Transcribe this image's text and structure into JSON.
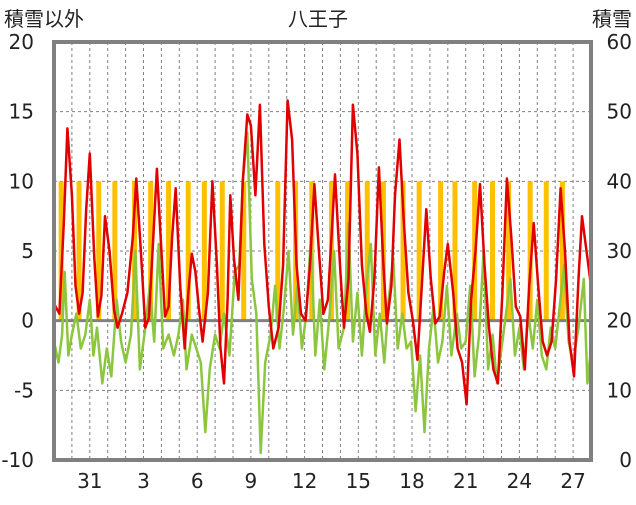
{
  "colors": {
    "temp_line": "#e00000",
    "wind_line": "#8cc63f",
    "sun_bars": "#ffc000",
    "snow_bar": "#7030a0",
    "frame": "#808080",
    "grid": "#808080",
    "zero_line": "#808080"
  },
  "chart_data": {
    "type": "line",
    "title": "八王子",
    "left_axis_label": "積雪以外",
    "right_axis_label": "積雪",
    "ylim": [
      -10,
      20
    ],
    "y_ticks": [
      "20",
      "15",
      "10",
      "5",
      "0",
      "-5",
      "-10"
    ],
    "y2lim": [
      0,
      60
    ],
    "y2_ticks": [
      "60",
      "50",
      "40",
      "30",
      "20",
      "10",
      "0"
    ],
    "x_tick_labels": [
      "31",
      "3",
      "6",
      "9",
      "12",
      "15",
      "18",
      "21",
      "24",
      "27"
    ],
    "x_tick_days": [
      2,
      5,
      8,
      11,
      14,
      17,
      20,
      23,
      26,
      29
    ],
    "x_range_days": [
      0.0,
      30.0
    ],
    "grid": "vertical dashed daily, horizontal dashed at 5-unit steps",
    "sun_bar_days": [
      0.4,
      1.4,
      2.5,
      3.4,
      4.5,
      5.4,
      6.4,
      7.5,
      8.4,
      9.4,
      10.6,
      12.5,
      13.5,
      14.4,
      15.5,
      16.4,
      17.5,
      18.4,
      19.5,
      20.4,
      21.6,
      22.4,
      23.5,
      24.5,
      25.4,
      26.6,
      27.5,
      28.4
    ],
    "sun_bar_value": 10,
    "snow_depth": 0,
    "series": [
      {
        "key": "temperature",
        "values": [
          [
            0.0,
            1.2
          ],
          [
            0.3,
            0.5
          ],
          [
            0.55,
            7.0
          ],
          [
            0.75,
            13.8
          ],
          [
            1.0,
            9.0
          ],
          [
            1.2,
            2.5
          ],
          [
            1.4,
            0.5
          ],
          [
            1.6,
            2.0
          ],
          [
            1.8,
            8.0
          ],
          [
            2.0,
            12.0
          ],
          [
            2.25,
            4.5
          ],
          [
            2.45,
            0.3
          ],
          [
            2.65,
            1.8
          ],
          [
            2.85,
            7.5
          ],
          [
            3.1,
            5.0
          ],
          [
            3.35,
            0.8
          ],
          [
            3.55,
            -0.5
          ],
          [
            3.8,
            0.5
          ],
          [
            4.1,
            2.0
          ],
          [
            4.4,
            6.0
          ],
          [
            4.6,
            10.2
          ],
          [
            4.9,
            4.0
          ],
          [
            5.1,
            -0.5
          ],
          [
            5.3,
            0.2
          ],
          [
            5.55,
            6.0
          ],
          [
            5.75,
            10.9
          ],
          [
            6.0,
            5.0
          ],
          [
            6.2,
            0.3
          ],
          [
            6.4,
            1.0
          ],
          [
            6.6,
            6.0
          ],
          [
            6.8,
            9.5
          ],
          [
            7.05,
            2.5
          ],
          [
            7.3,
            -2.0
          ],
          [
            7.5,
            2.0
          ],
          [
            7.7,
            4.8
          ],
          [
            7.9,
            3.5
          ],
          [
            8.1,
            0.8
          ],
          [
            8.3,
            -1.5
          ],
          [
            8.6,
            2.0
          ],
          [
            8.85,
            10.0
          ],
          [
            9.1,
            4.0
          ],
          [
            9.3,
            -2.0
          ],
          [
            9.5,
            -4.5
          ],
          [
            9.7,
            1.5
          ],
          [
            9.85,
            9.0
          ],
          [
            10.05,
            4.5
          ],
          [
            10.3,
            1.5
          ],
          [
            10.55,
            10.0
          ],
          [
            10.8,
            14.8
          ],
          [
            11.0,
            14.0
          ],
          [
            11.25,
            9.0
          ],
          [
            11.5,
            15.5
          ],
          [
            11.75,
            5.5
          ],
          [
            12.0,
            1.0
          ],
          [
            12.25,
            -2.0
          ],
          [
            12.55,
            -0.5
          ],
          [
            12.8,
            4.0
          ],
          [
            13.05,
            15.8
          ],
          [
            13.3,
            13.0
          ],
          [
            13.55,
            4.0
          ],
          [
            13.8,
            0.5
          ],
          [
            14.05,
            0.0
          ],
          [
            14.3,
            4.0
          ],
          [
            14.55,
            9.8
          ],
          [
            14.8,
            5.0
          ],
          [
            15.05,
            0.5
          ],
          [
            15.3,
            1.5
          ],
          [
            15.5,
            6.0
          ],
          [
            15.7,
            10.5
          ],
          [
            16.0,
            3.5
          ],
          [
            16.2,
            -0.5
          ],
          [
            16.45,
            3.0
          ],
          [
            16.7,
            15.5
          ],
          [
            16.95,
            12.0
          ],
          [
            17.2,
            4.0
          ],
          [
            17.45,
            0.5
          ],
          [
            17.65,
            -0.8
          ],
          [
            17.9,
            3.0
          ],
          [
            18.15,
            11.0
          ],
          [
            18.4,
            4.0
          ],
          [
            18.6,
            -0.2
          ],
          [
            18.85,
            2.5
          ],
          [
            19.05,
            9.0
          ],
          [
            19.3,
            13.0
          ],
          [
            19.55,
            7.0
          ],
          [
            19.8,
            2.0
          ],
          [
            20.05,
            0.0
          ],
          [
            20.3,
            -2.8
          ],
          [
            20.55,
            2.5
          ],
          [
            20.8,
            8.0
          ],
          [
            21.05,
            3.0
          ],
          [
            21.3,
            -0.2
          ],
          [
            21.55,
            0.3
          ],
          [
            21.8,
            3.5
          ],
          [
            22.0,
            5.5
          ],
          [
            22.3,
            2.0
          ],
          [
            22.55,
            -2.0
          ],
          [
            22.8,
            -3.0
          ],
          [
            23.05,
            -6.0
          ],
          [
            23.3,
            1.5
          ],
          [
            23.55,
            5.0
          ],
          [
            23.8,
            9.8
          ],
          [
            24.05,
            4.0
          ],
          [
            24.3,
            -0.5
          ],
          [
            24.55,
            -3.5
          ],
          [
            24.8,
            -4.5
          ],
          [
            25.05,
            2.0
          ],
          [
            25.3,
            10.2
          ],
          [
            25.55,
            6.0
          ],
          [
            25.8,
            1.0
          ],
          [
            26.05,
            0.3
          ],
          [
            26.3,
            -3.5
          ],
          [
            26.55,
            2.5
          ],
          [
            26.8,
            7.0
          ],
          [
            27.05,
            2.5
          ],
          [
            27.3,
            -1.5
          ],
          [
            27.55,
            -2.5
          ],
          [
            27.8,
            -1.5
          ],
          [
            28.05,
            3.0
          ],
          [
            28.3,
            9.5
          ],
          [
            28.55,
            5.0
          ],
          [
            28.8,
            -1.5
          ],
          [
            29.05,
            -4.0
          ],
          [
            29.3,
            3.0
          ],
          [
            29.5,
            7.5
          ],
          [
            29.75,
            5.0
          ],
          [
            30.0,
            2.5
          ]
        ]
      },
      {
        "key": "wind",
        "values": [
          [
            0.0,
            -1.5
          ],
          [
            0.25,
            -3.0
          ],
          [
            0.45,
            -1.0
          ],
          [
            0.6,
            3.5
          ],
          [
            0.8,
            -2.5
          ],
          [
            1.0,
            -1.0
          ],
          [
            1.25,
            0.5
          ],
          [
            1.5,
            -2.0
          ],
          [
            1.75,
            -1.0
          ],
          [
            2.0,
            1.5
          ],
          [
            2.2,
            -2.5
          ],
          [
            2.4,
            -0.5
          ],
          [
            2.7,
            -4.5
          ],
          [
            2.95,
            -2.0
          ],
          [
            3.2,
            -4.0
          ],
          [
            3.5,
            1.5
          ],
          [
            3.75,
            -1.5
          ],
          [
            4.0,
            -3.0
          ],
          [
            4.3,
            -1.0
          ],
          [
            4.55,
            5.0
          ],
          [
            4.8,
            -3.5
          ],
          [
            5.1,
            -0.5
          ],
          [
            5.35,
            2.5
          ],
          [
            5.6,
            -1.5
          ],
          [
            5.85,
            5.5
          ],
          [
            6.1,
            -2.0
          ],
          [
            6.4,
            -1.0
          ],
          [
            6.7,
            -2.5
          ],
          [
            6.95,
            -1.0
          ],
          [
            7.2,
            1.5
          ],
          [
            7.4,
            -3.5
          ],
          [
            7.7,
            -1.0
          ],
          [
            7.95,
            -2.0
          ],
          [
            8.2,
            -3.0
          ],
          [
            8.45,
            -8.0
          ],
          [
            8.7,
            -3.5
          ],
          [
            9.0,
            -1.0
          ],
          [
            9.25,
            -2.0
          ],
          [
            9.5,
            0.5
          ],
          [
            9.8,
            -2.5
          ],
          [
            10.1,
            3.5
          ],
          [
            10.35,
            4.0
          ],
          [
            10.55,
            10.0
          ],
          [
            10.8,
            13.5
          ],
          [
            11.05,
            3.0
          ],
          [
            11.3,
            0.5
          ],
          [
            11.55,
            -9.5
          ],
          [
            11.8,
            -3.0
          ],
          [
            12.1,
            -1.0
          ],
          [
            12.35,
            2.5
          ],
          [
            12.6,
            -2.0
          ],
          [
            12.85,
            1.0
          ],
          [
            13.1,
            5.0
          ],
          [
            13.35,
            -1.0
          ],
          [
            13.6,
            2.5
          ],
          [
            13.85,
            -2.0
          ],
          [
            14.1,
            0.5
          ],
          [
            14.35,
            6.0
          ],
          [
            14.6,
            -2.5
          ],
          [
            14.85,
            1.5
          ],
          [
            15.1,
            -3.5
          ],
          [
            15.4,
            0.5
          ],
          [
            15.65,
            5.0
          ],
          [
            15.9,
            -2.0
          ],
          [
            16.2,
            -0.5
          ],
          [
            16.45,
            7.0
          ],
          [
            16.7,
            -1.5
          ],
          [
            16.95,
            2.0
          ],
          [
            17.2,
            -2.5
          ],
          [
            17.45,
            2.5
          ],
          [
            17.7,
            5.5
          ],
          [
            17.95,
            -2.5
          ],
          [
            18.2,
            0.5
          ],
          [
            18.45,
            -3.0
          ],
          [
            18.7,
            1.5
          ],
          [
            18.95,
            4.5
          ],
          [
            19.2,
            -2.0
          ],
          [
            19.45,
            0.5
          ],
          [
            19.7,
            -2.0
          ],
          [
            19.95,
            -1.5
          ],
          [
            20.2,
            -6.5
          ],
          [
            20.45,
            -2.5
          ],
          [
            20.7,
            -8.0
          ],
          [
            20.95,
            -2.0
          ],
          [
            21.2,
            1.0
          ],
          [
            21.45,
            -3.0
          ],
          [
            21.7,
            -1.5
          ],
          [
            21.95,
            2.5
          ],
          [
            22.2,
            -2.5
          ],
          [
            22.5,
            0.5
          ],
          [
            22.75,
            -2.0
          ],
          [
            23.0,
            -1.5
          ],
          [
            23.25,
            2.5
          ],
          [
            23.5,
            -4.0
          ],
          [
            23.75,
            -1.0
          ],
          [
            24.0,
            5.0
          ],
          [
            24.25,
            -3.5
          ],
          [
            24.5,
            -1.0
          ],
          [
            24.75,
            -4.5
          ],
          [
            25.0,
            -2.0
          ],
          [
            25.25,
            0.5
          ],
          [
            25.5,
            3.0
          ],
          [
            25.75,
            -2.5
          ],
          [
            26.0,
            -0.5
          ],
          [
            26.25,
            -3.5
          ],
          [
            26.5,
            0.5
          ],
          [
            26.75,
            -2.0
          ],
          [
            27.0,
            1.5
          ],
          [
            27.25,
            -2.5
          ],
          [
            27.5,
            -3.5
          ],
          [
            27.75,
            -0.5
          ],
          [
            28.0,
            -2.0
          ],
          [
            28.25,
            1.0
          ],
          [
            28.5,
            4.0
          ],
          [
            28.75,
            -1.5
          ],
          [
            29.0,
            -3.0
          ],
          [
            29.3,
            -0.5
          ],
          [
            29.6,
            3.0
          ],
          [
            29.8,
            -4.5
          ],
          [
            30.0,
            -2.0
          ]
        ]
      }
    ]
  }
}
